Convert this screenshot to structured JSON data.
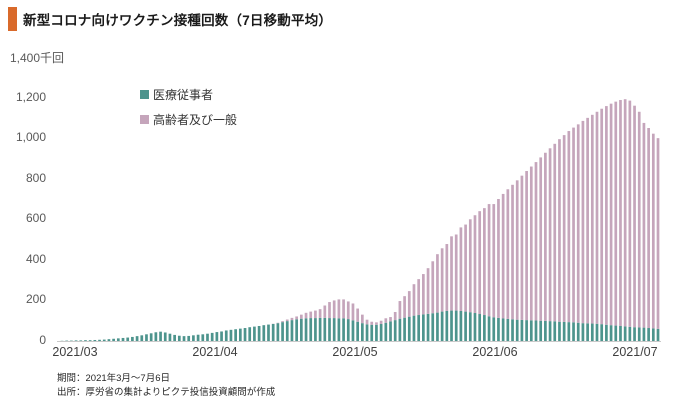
{
  "header": {
    "title": "新型コロナ向けワクチン接種回数（7日移動平均）",
    "accent_color": "#d96a2b"
  },
  "legend": {
    "items": [
      {
        "label": "医療従事者",
        "color": "#4d948d"
      },
      {
        "label": "高齢者及び一般",
        "color": "#c5a5bb"
      }
    ]
  },
  "y_axis": {
    "top_label": "1,400千回",
    "unit": "千回",
    "tick_labels": [
      "0",
      "200",
      "400",
      "600",
      "800",
      "1,000",
      "1,200"
    ],
    "tick_values": [
      0,
      200,
      400,
      600,
      800,
      1000,
      1200
    ],
    "max": 1400
  },
  "x_axis": {
    "labels": [
      "2021/03",
      "2021/04",
      "2021/05",
      "2021/06",
      "2021/07"
    ]
  },
  "footer": {
    "period": "期間：2021年3月～7月6日",
    "source": "出所：厚労省の集計よりピクテ投信投資顧問が作成"
  },
  "chart_data": {
    "type": "bar",
    "stacked": true,
    "title": "新型コロナ向けワクチン接種回数（7日移動平均）",
    "ylabel": "千回",
    "ylim": [
      0,
      1400
    ],
    "x_start": "2021-03-01",
    "x_end": "2021-07-06",
    "grid": false,
    "legend_position": "upper-left-inside",
    "series": [
      {
        "name": "医療従事者",
        "color": "#4d948d",
        "values": [
          1,
          2,
          2,
          3,
          3,
          4,
          4,
          5,
          6,
          7,
          9,
          11,
          13,
          15,
          17,
          20,
          24,
          28,
          33,
          38,
          43,
          46,
          42,
          36,
          30,
          26,
          24,
          25,
          28,
          31,
          33,
          36,
          40,
          44,
          47,
          52,
          55,
          58,
          61,
          64,
          68,
          71,
          74,
          78,
          81,
          84,
          88,
          93,
          98,
          103,
          107,
          110,
          112,
          113,
          113,
          114,
          114,
          113,
          113,
          112,
          112,
          108,
          102,
          95,
          88,
          82,
          80,
          80,
          84,
          90,
          97,
          103,
          110,
          115,
          120,
          125,
          128,
          131,
          134,
          137,
          140,
          145,
          148,
          150,
          150,
          148,
          145,
          142,
          138,
          133,
          128,
          122,
          117,
          114,
          111,
          109,
          107,
          105,
          104,
          103,
          102,
          101,
          100,
          99,
          98,
          97,
          95,
          94,
          93,
          92,
          90,
          88,
          87,
          86,
          85,
          83,
          80,
          78,
          76,
          74,
          72,
          70,
          68,
          67,
          66,
          64,
          62,
          60
        ]
      },
      {
        "name": "高齢者及び一般",
        "color": "#c5a5bb",
        "values": [
          0,
          0,
          0,
          0,
          0,
          0,
          0,
          0,
          0,
          0,
          0,
          0,
          0,
          0,
          0,
          0,
          0,
          0,
          0,
          0,
          0,
          0,
          0,
          0,
          0,
          0,
          0,
          0,
          0,
          0,
          0,
          0,
          0,
          0,
          0,
          0,
          0,
          0,
          0,
          0,
          0,
          0,
          0,
          0,
          0,
          1,
          2,
          5,
          8,
          11,
          14,
          20,
          27,
          32,
          37,
          43,
          61,
          79,
          87,
          93,
          93,
          87,
          83,
          65,
          42,
          23,
          15,
          12,
          16,
          22,
          21,
          40,
          87,
          106,
          126,
          155,
          177,
          199,
          225,
          256,
          288,
          312,
          330,
          366,
          375,
          412,
          429,
          458,
          482,
          507,
          527,
          553,
          558,
          586,
          614,
          639,
          663,
          687,
          711,
          735,
          758,
          781,
          805,
          829,
          852,
          875,
          900,
          921,
          942,
          960,
          978,
          997,
          1013,
          1029,
          1045,
          1062,
          1078,
          1092,
          1104,
          1114,
          1120,
          1115,
          1092,
          1063,
          1009,
          986,
          960,
          940
        ]
      }
    ]
  }
}
